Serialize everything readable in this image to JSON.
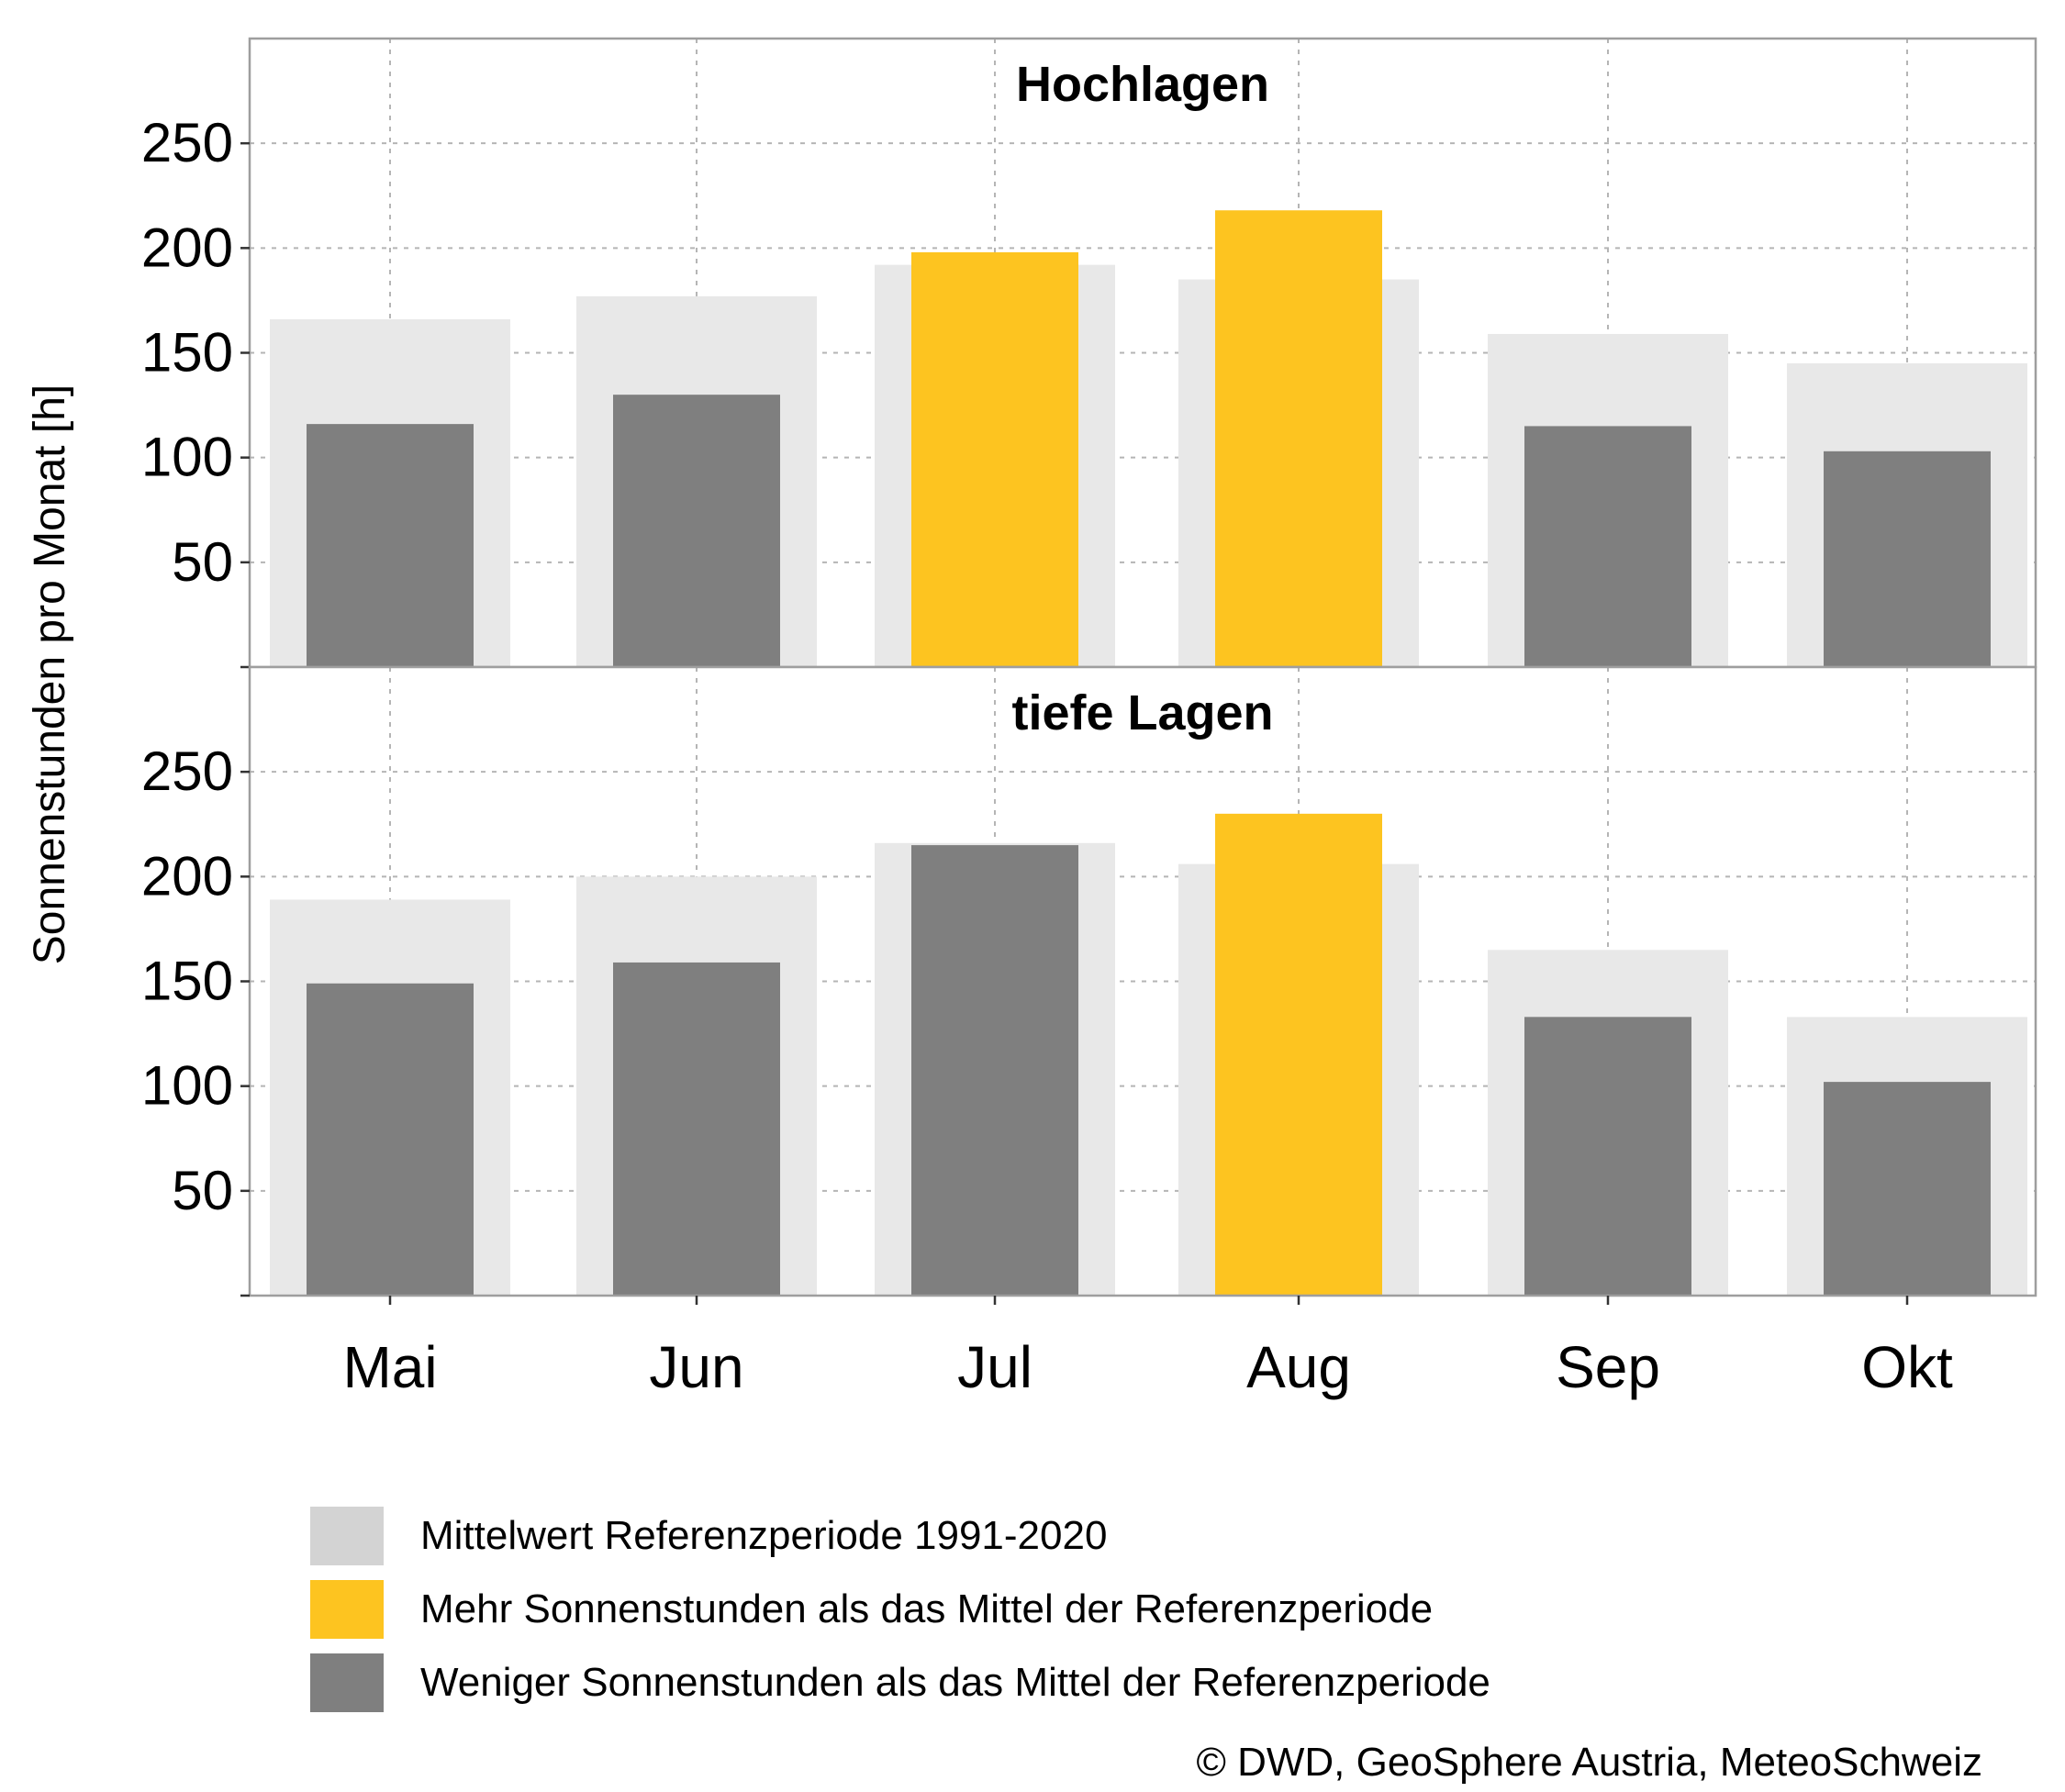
{
  "chart_data": {
    "type": "bar",
    "ylabel": "Sonnenstunden pro Monat [h]",
    "ylim": [
      0,
      300
    ],
    "yticks": [
      50,
      100,
      150,
      200,
      250
    ],
    "categories": [
      "Mai",
      "Jun",
      "Jul",
      "Aug",
      "Sep",
      "Okt"
    ],
    "panels": [
      {
        "title": "Hochlagen",
        "reference": [
          166,
          177,
          192,
          185,
          159,
          145
        ],
        "values": [
          116,
          130,
          198,
          218,
          115,
          103
        ]
      },
      {
        "title": "tiefe Lagen",
        "reference": [
          189,
          200,
          216,
          206,
          165,
          133
        ],
        "values": [
          149,
          159,
          215,
          230,
          133,
          102
        ]
      }
    ],
    "grid": true,
    "legend_position": "bottom",
    "colors": {
      "reference": "#e8e8e8",
      "more": "#fdc420",
      "less": "#7f7f7f",
      "legend_reference": "#d3d3d3"
    }
  },
  "legend": {
    "items": [
      {
        "label": "Mittelwert Referenzperiode 1991-2020",
        "color": "#d3d3d3"
      },
      {
        "label": "Mehr Sonnenstunden als das Mittel der Referenzperiode",
        "color": "#fdc420"
      },
      {
        "label": "Weniger Sonnenstunden als das Mittel der Referenzperiode",
        "color": "#7f7f7f"
      }
    ]
  },
  "credit": "© DWD, GeoSphere Austria, MeteoSchweiz"
}
